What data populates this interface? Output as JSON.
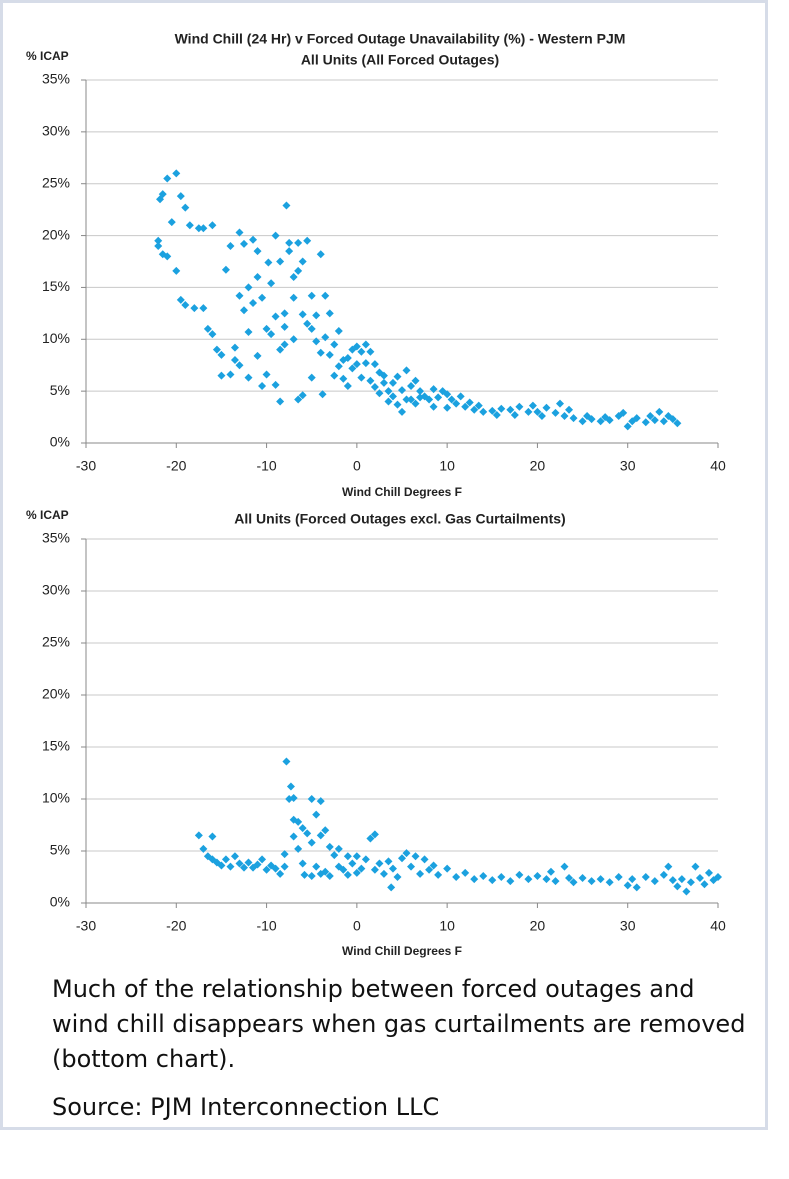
{
  "chart_data": [
    {
      "type": "scatter",
      "title": "Wind Chill (24 Hr) v Forced Outage Unavailability (%) - Western PJM",
      "subtitle": "All Units (All Forced Outages)",
      "y_label": "% ICAP",
      "x_label": "Wind Chill Degrees F",
      "color": "#1ba1df",
      "grid": true,
      "xlim": [
        -30,
        40
      ],
      "xticks": [
        -30,
        -20,
        -10,
        0,
        10,
        20,
        30,
        40
      ],
      "ylim": [
        0,
        35
      ],
      "yticks": [
        {
          "value": 0,
          "label": "0%"
        },
        {
          "value": 5,
          "label": "5%"
        },
        {
          "value": 10,
          "label": "10%"
        },
        {
          "value": 15,
          "label": "15%"
        },
        {
          "value": 20,
          "label": "20%"
        },
        {
          "value": 25,
          "label": "25%"
        },
        {
          "value": 30,
          "label": "30%"
        },
        {
          "value": 35,
          "label": "35%"
        }
      ],
      "x": [
        -22,
        -22,
        -21.8,
        -21.5,
        -21.5,
        -21,
        -21,
        -20.5,
        -20,
        -20,
        -19.5,
        -19.5,
        -19,
        -19,
        -18.5,
        -18,
        -17.5,
        -17,
        -17,
        -16.5,
        -16,
        -16,
        -15.5,
        -15,
        -15,
        -14.5,
        -14,
        -14,
        -13.5,
        -13.5,
        -13,
        -13,
        -13,
        -12.5,
        -12.5,
        -12,
        -12,
        -12,
        -11.5,
        -11.5,
        -11,
        -11,
        -11,
        -10.5,
        -10.5,
        -10,
        -10,
        -9.8,
        -9.5,
        -9.5,
        -9,
        -9,
        -9,
        -8.5,
        -8.5,
        -8.5,
        -8,
        -8,
        -8,
        -7.8,
        -7.5,
        -7.5,
        -7,
        -7,
        -7,
        -6.5,
        -6.5,
        -6.5,
        -6,
        -6,
        -6,
        -5.5,
        -5.5,
        -5,
        -5,
        -5,
        -4.5,
        -4.5,
        -4,
        -4,
        -3.8,
        -3.5,
        -3.5,
        -3,
        -3,
        -2.5,
        -2.5,
        -2,
        -2,
        -1.5,
        -1.5,
        -1,
        -1,
        -0.5,
        -0.5,
        0,
        0,
        0.5,
        0.5,
        1,
        1,
        1.5,
        1.5,
        2,
        2,
        2.5,
        2.5,
        3,
        3,
        3.5,
        3.5,
        4,
        4,
        4.5,
        4.5,
        5,
        5,
        5.5,
        5.5,
        6,
        6,
        6.5,
        6.5,
        7,
        7,
        7.5,
        8,
        8.5,
        8.5,
        9,
        9.5,
        10,
        10,
        10.5,
        11,
        11.5,
        12,
        12.5,
        13,
        13.5,
        14,
        15,
        15.5,
        16,
        17,
        17.5,
        18,
        19,
        19.5,
        20,
        20.5,
        21,
        22,
        22.5,
        23,
        23.5,
        24,
        25,
        25.5,
        26,
        27,
        27.5,
        28,
        29,
        29.5,
        30,
        30.5,
        31,
        32,
        32.5,
        33,
        33.5,
        34,
        34.5,
        35,
        35.5
      ],
      "values": [
        19.5,
        19,
        23.5,
        24,
        18.2,
        18,
        25.5,
        21.3,
        26,
        16.6,
        23.8,
        13.8,
        22.7,
        13.3,
        21,
        13,
        20.7,
        20.7,
        13,
        11,
        21,
        10.5,
        9,
        8.5,
        6.5,
        16.7,
        6.6,
        19,
        8,
        9.2,
        7.5,
        20.3,
        14.2,
        19.2,
        12.8,
        15,
        10.7,
        6.3,
        19.6,
        13.5,
        16,
        18.5,
        8.4,
        14,
        5.5,
        11,
        6.6,
        17.4,
        10.5,
        15.4,
        20,
        5.6,
        12.2,
        17.5,
        9,
        4,
        11.2,
        12.5,
        9.5,
        22.9,
        19.3,
        18.5,
        16,
        14,
        10,
        19.3,
        16.6,
        4.2,
        17.5,
        12.4,
        4.6,
        19.5,
        11.5,
        14.2,
        11,
        6.3,
        12.3,
        9.8,
        18.2,
        8.7,
        4.7,
        14.2,
        10.2,
        12.5,
        8.5,
        9.5,
        6.5,
        10.8,
        7.4,
        8,
        6.2,
        8.2,
        5.5,
        7.2,
        9,
        7.6,
        9.3,
        6.3,
        8.8,
        9.5,
        7.7,
        8.8,
        6,
        7.6,
        5.4,
        6.8,
        4.8,
        6.5,
        5.8,
        5,
        4,
        5.8,
        4.5,
        6.4,
        3.7,
        5.1,
        3,
        7,
        4.2,
        5.5,
        4.2,
        6,
        3.8,
        5,
        4.4,
        4.5,
        4.2,
        5.2,
        3.5,
        4.4,
        5,
        4.7,
        3.4,
        4.2,
        3.8,
        4.5,
        3.5,
        3.9,
        3.2,
        3.6,
        3,
        3.1,
        2.7,
        3.3,
        3.2,
        2.7,
        3.5,
        3,
        3.6,
        3,
        2.6,
        3.4,
        2.9,
        3.8,
        2.6,
        3.2,
        2.4,
        2.1,
        2.6,
        2.3,
        2.1,
        2.5,
        2.2,
        2.6,
        2.9,
        1.6,
        2.1,
        2.4,
        2,
        2.6,
        2.2,
        3,
        2.1,
        2.6,
        2.3,
        1.9
      ]
    },
    {
      "type": "scatter",
      "title": "All Units  (Forced Outages excl. Gas Curtailments)",
      "y_label": "% ICAP",
      "x_label": "Wind Chill Degrees F",
      "color": "#1ba1df",
      "grid": true,
      "xlim": [
        -30,
        40
      ],
      "xticks": [
        -30,
        -20,
        -10,
        0,
        10,
        20,
        30,
        40
      ],
      "ylim": [
        0,
        35
      ],
      "yticks": [
        {
          "value": 0,
          "label": "0%"
        },
        {
          "value": 5,
          "label": "5%"
        },
        {
          "value": 10,
          "label": "10%"
        },
        {
          "value": 15,
          "label": "15%"
        },
        {
          "value": 20,
          "label": "20%"
        },
        {
          "value": 25,
          "label": "25%"
        },
        {
          "value": 30,
          "label": "30%"
        },
        {
          "value": 35,
          "label": "35%"
        }
      ],
      "x": [
        -17.5,
        -17,
        -16.5,
        -16,
        -16,
        -15.5,
        -15,
        -14.5,
        -14,
        -13.5,
        -13,
        -12.5,
        -12,
        -11.5,
        -11,
        -10.5,
        -10,
        -9.5,
        -9,
        -8.5,
        -8,
        -8,
        -7.8,
        -7.5,
        -7.3,
        -7,
        -7,
        -7,
        -6.5,
        -6.5,
        -6,
        -6,
        -5.8,
        -5.5,
        -5,
        -5,
        -5,
        -4.5,
        -4.5,
        -4,
        -4,
        -4,
        -3.5,
        -3.5,
        -3,
        -3,
        -2.5,
        -2,
        -2,
        -1.5,
        -1,
        -1,
        -0.5,
        0,
        0,
        0.5,
        1,
        1.5,
        2,
        2,
        2.5,
        3,
        3.5,
        3.8,
        4,
        4.5,
        5,
        5.5,
        6,
        6.5,
        7,
        7.5,
        8,
        8.5,
        9,
        10,
        11,
        12,
        13,
        14,
        15,
        16,
        17,
        18,
        19,
        20,
        21,
        21.5,
        22,
        23,
        23.5,
        24,
        25,
        26,
        27,
        28,
        29,
        30,
        30.5,
        31,
        32,
        33,
        34,
        34.5,
        35,
        35.5,
        36,
        36.5,
        37,
        37.5,
        38,
        38.5,
        39,
        39.5,
        40
      ],
      "values": [
        6.5,
        5.2,
        4.5,
        6.4,
        4.2,
        3.9,
        3.6,
        4.2,
        3.5,
        4.5,
        3.8,
        3.4,
        3.9,
        3.4,
        3.7,
        4.2,
        3.2,
        3.6,
        3.3,
        2.8,
        3.5,
        4.7,
        13.6,
        10,
        11.2,
        10.1,
        8,
        6.4,
        7.8,
        5.2,
        7.2,
        3.8,
        2.7,
        6.7,
        10,
        5.8,
        2.6,
        8.5,
        3.5,
        9.8,
        6.5,
        2.8,
        7,
        3,
        5.4,
        2.6,
        4.6,
        3.5,
        5.2,
        3.2,
        4.5,
        2.7,
        3.8,
        4.5,
        2.9,
        3.3,
        4.2,
        6.2,
        6.6,
        3.2,
        3.8,
        2.8,
        4,
        1.5,
        3.3,
        2.5,
        4.3,
        4.8,
        3.5,
        4.5,
        2.8,
        4.2,
        3.2,
        3.6,
        2.7,
        3.3,
        2.5,
        2.9,
        2.3,
        2.6,
        2.2,
        2.5,
        2.1,
        2.7,
        2.3,
        2.6,
        2.3,
        3,
        2.1,
        3.5,
        2.4,
        2,
        2.4,
        2.1,
        2.3,
        2,
        2.5,
        1.7,
        2.3,
        1.5,
        2.5,
        2.1,
        2.7,
        3.5,
        2.2,
        1.6,
        2.3,
        1.1,
        2,
        3.5,
        2.4,
        1.8,
        2.9,
        2.2,
        2.5
      ]
    }
  ],
  "caption": "Much of the relationship between forced outages and wind chill disappears when gas curtailments are removed (bottom chart).",
  "source": "Source: PJM Interconnection LLC"
}
